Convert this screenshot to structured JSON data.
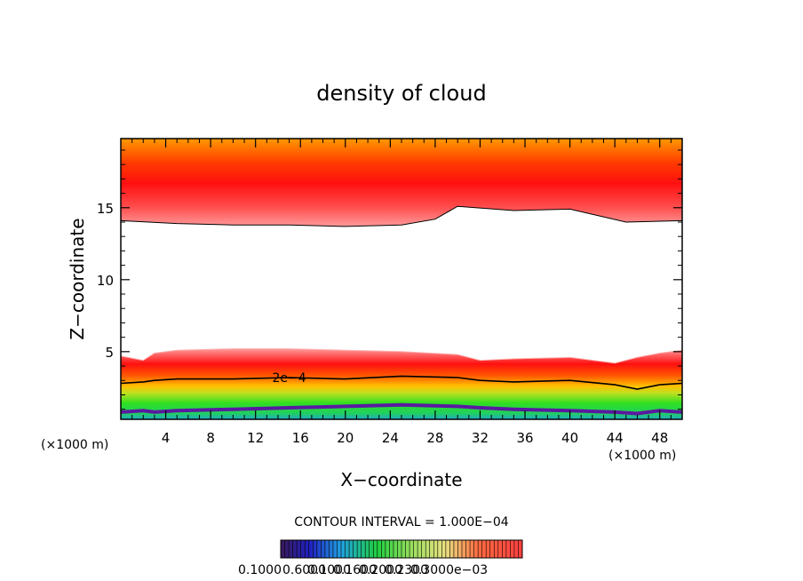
{
  "chart_data": {
    "type": "heatmap",
    "title": "density of cloud",
    "xlabel": "X−coordinate",
    "ylabel": "Z−coordinate",
    "x_unit_left": "(×1000 m)",
    "x_unit_right": "(×1000 m)",
    "xlim": [
      0,
      50
    ],
    "ylim": [
      0.3,
      19.8
    ],
    "x_ticks": [
      4,
      8,
      12,
      16,
      20,
      24,
      28,
      32,
      36,
      40,
      44,
      48
    ],
    "y_ticks": [
      5,
      10,
      15
    ],
    "contour_interval_label": "CONTOUR INTERVAL = 1.000E−04",
    "contour_label": "2e−4",
    "colorbar_labels": [
      "0.1000",
      "0.6000",
      "0.1000",
      "0.1600",
      "0.2000",
      "0.2300",
      "0.3000e−03"
    ],
    "colors": {
      "low": "#3a1a8a",
      "mid": "#22d022",
      "high": "#ff1010",
      "top": "#ffd000"
    },
    "upper_layer": {
      "x": [
        0,
        5,
        10,
        15,
        20,
        25,
        28,
        30,
        35,
        40,
        45,
        50
      ],
      "base": [
        14.1,
        13.9,
        13.8,
        13.8,
        13.7,
        13.8,
        14.2,
        15.1,
        14.8,
        14.9,
        14.0,
        14.1
      ],
      "core": 16.5,
      "top": 19.8
    },
    "lower_layer": {
      "x": [
        0,
        2,
        3,
        5,
        10,
        15,
        20,
        25,
        30,
        32,
        35,
        40,
        44,
        46,
        48,
        50
      ],
      "top": [
        4.7,
        4.4,
        4.9,
        5.1,
        5.2,
        5.2,
        5.1,
        5.0,
        4.8,
        4.4,
        4.5,
        4.6,
        4.2,
        4.6,
        4.9,
        5.1
      ],
      "contour_2e4": [
        2.8,
        2.9,
        3.0,
        3.1,
        3.1,
        3.2,
        3.1,
        3.3,
        3.2,
        3.0,
        2.9,
        3.0,
        2.7,
        2.4,
        2.7,
        2.8
      ],
      "bottom": [
        0.8,
        0.9,
        0.8,
        0.9,
        1.0,
        1.1,
        1.2,
        1.3,
        1.2,
        1.1,
        1.0,
        0.9,
        0.8,
        0.7,
        0.9,
        0.8
      ]
    }
  }
}
